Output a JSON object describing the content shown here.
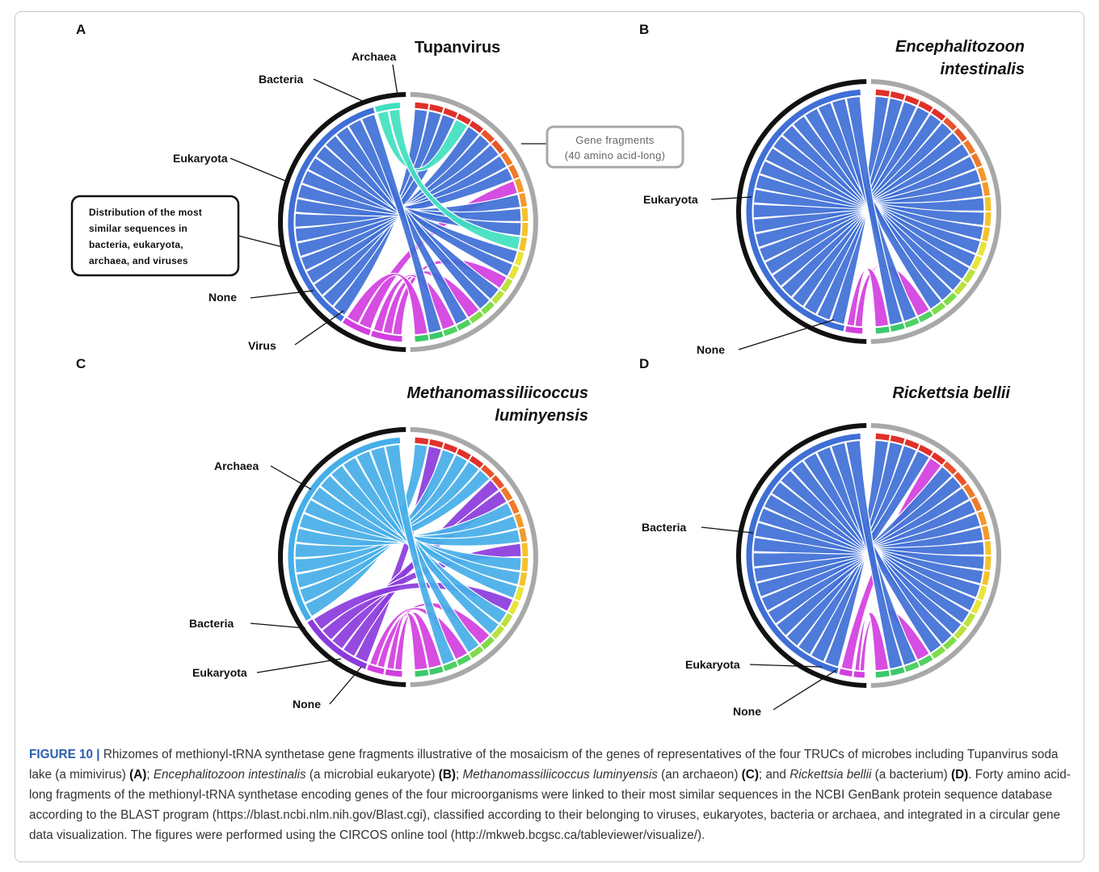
{
  "panels": {
    "A": {
      "letter": "A",
      "title": "Tupanvirus",
      "labels": {
        "archaea": "Archaea",
        "bacteria": "Bacteria",
        "eukaryota": "Eukaryota",
        "none": "None",
        "virus": "Virus"
      },
      "callout_gene": {
        "line1": "Gene fragments",
        "line2": "(40 amino acid-long)"
      },
      "callout_dist": {
        "line1": "Distribution of the most",
        "line2": "similar sequences in",
        "line3": "bacteria, eukaryota,",
        "line4": "archaea, and viruses"
      }
    },
    "B": {
      "letter": "B",
      "title_line1": "Encephalitozoon",
      "title_line2": "intestinalis",
      "labels": {
        "eukaryota": "Eukaryota",
        "none": "None"
      }
    },
    "C": {
      "letter": "C",
      "title_line1": "Methanomassiliicoccus",
      "title_line2": "luminyensis",
      "labels": {
        "archaea": "Archaea",
        "bacteria": "Bacteria",
        "eukaryota": "Eukaryota",
        "none": "None"
      }
    },
    "D": {
      "letter": "D",
      "title": "Rickettsia bellii",
      "labels": {
        "bacteria": "Bacteria",
        "eukaryota": "Eukaryota",
        "none": "None"
      }
    }
  },
  "colors": {
    "blue": "#3f6fd6",
    "lightblue": "#45aee8",
    "teal": "#40dfc0",
    "magenta": "#d23ee0",
    "purple": "#8b3bdc",
    "outer_black": "#111111",
    "outer_gray": "#a8a8a8"
  },
  "caption": {
    "fig_label": "FIGURE 10 |",
    "s1": " Rhizomes of methionyl-tRNA synthetase gene fragments illustrative of the mosaicism of the genes of representatives of the four TRUCs of microbes including Tupanvirus soda lake (a mimivirus) ",
    "refA": "(A)",
    "s2": "; ",
    "sp1": "Encephalitozoon intestinalis",
    "s3": " (a microbial eukaryote) ",
    "refB": "(B)",
    "s4": "; ",
    "sp2": "Methanomassiliicoccus luminyensis",
    "s5": " (an archaeon) ",
    "refC": "(C)",
    "s6": "; and ",
    "sp3": "Rickettsia bellii",
    "s7": " (a bacterium) ",
    "refD": "(D)",
    "s8": ". Forty amino acid-long fragments of the methionyl-tRNA synthetase encoding genes of the four microorganisms were linked to their most similar sequences in the NCBI GenBank protein sequence database according to the BLAST program (https://blast.ncbi.nlm.nih.gov/Blast.cgi), classified according to their belonging to viruses, eukaryotes, bacteria or archaea, and integrated in a circular gene data visualization. The figures were performed using the CIRCOS online tool (http://mkweb.bcgsc.ca/tableviewer/visualize/)."
  }
}
